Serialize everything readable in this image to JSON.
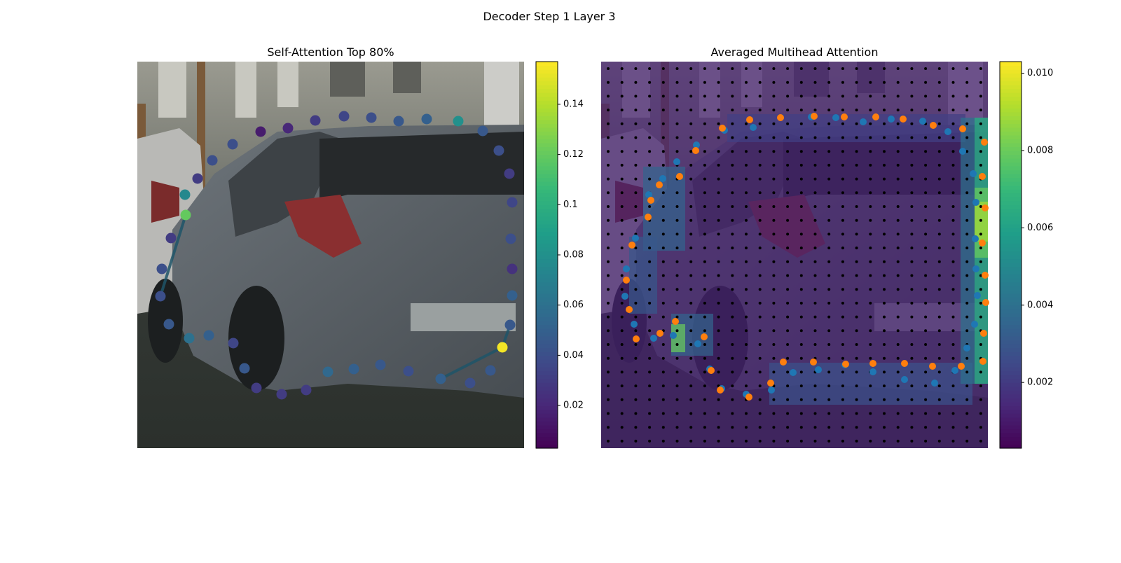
{
  "title": "Decoder Step 1 Layer 3",
  "chart_data": [
    {
      "type": "scatter",
      "title": "Self-Attention Top 80%",
      "xlim": [
        0,
        552
      ],
      "ylim": [
        552,
        0
      ],
      "clim": [
        0.003,
        0.157
      ],
      "cticks": [
        0.02,
        0.04,
        0.06,
        0.08,
        0.1,
        0.12,
        0.14
      ],
      "links": [
        [
          35,
          32
        ],
        [
          16,
          19
        ],
        [
          16,
          15
        ]
      ],
      "series": [
        {
          "x": [
            176,
            215,
            254,
            295,
            334,
            373,
            413,
            458,
            493,
            516,
            531,
            535,
            533,
            535,
            535,
            532,
            521,
            504,
            475,
            433,
            387,
            347,
            309,
            272,
            241,
            206,
            170,
            153,
            137,
            102,
            74,
            45,
            33,
            35,
            48,
            69,
            68,
            86,
            107,
            136
          ],
          "y": [
            100,
            95,
            84,
            78,
            80,
            85,
            82,
            85,
            99,
            127,
            160,
            201,
            253,
            296,
            334,
            376,
            408,
            441,
            459,
            453,
            442,
            433,
            439,
            443,
            469,
            475,
            466,
            438,
            402,
            391,
            395,
            375,
            335,
            296,
            252,
            219,
            190,
            167,
            141,
            118
          ],
          "values": [
            0.015,
            0.02,
            0.03,
            0.035,
            0.04,
            0.045,
            0.05,
            0.08,
            0.045,
            0.04,
            0.03,
            0.035,
            0.04,
            0.025,
            0.05,
            0.045,
            0.155,
            0.045,
            0.04,
            0.05,
            0.04,
            0.045,
            0.05,
            0.055,
            0.03,
            0.03,
            0.03,
            0.045,
            0.035,
            0.05,
            0.06,
            0.045,
            0.04,
            0.04,
            0.03,
            0.12,
            0.075,
            0.03,
            0.04,
            0.04
          ]
        }
      ]
    },
    {
      "type": "heatmap-scatter",
      "title": "Averaged Multihead Attention",
      "xlim": [
        0,
        552
      ],
      "ylim": [
        552,
        0
      ],
      "clim": [
        0.0003,
        0.0103
      ],
      "cticks": [
        0.002,
        0.004,
        0.006,
        0.008,
        {
          "value": 0.01,
          "label": "0.010"
        }
      ],
      "heatmap": [
        {
          "x": 0,
          "y": 0,
          "w": 552,
          "h": 552,
          "value": 0.0012
        },
        {
          "x": 180,
          "y": 75,
          "w": 340,
          "h": 40,
          "value": 0.0022
        },
        {
          "x": 60,
          "y": 150,
          "w": 60,
          "h": 120,
          "value": 0.0035
        },
        {
          "x": 40,
          "y": 250,
          "w": 40,
          "h": 110,
          "value": 0.003
        },
        {
          "x": 240,
          "y": 430,
          "w": 290,
          "h": 60,
          "value": 0.0028
        },
        {
          "x": 100,
          "y": 360,
          "w": 60,
          "h": 60,
          "value": 0.0035
        },
        {
          "x": 100,
          "y": 375,
          "w": 20,
          "h": 40,
          "value": 0.008
        },
        {
          "x": 513,
          "y": 80,
          "w": 39,
          "h": 380,
          "value": 0.004
        },
        {
          "x": 533,
          "y": 80,
          "w": 19,
          "h": 380,
          "value": 0.0065
        },
        {
          "x": 533,
          "y": 180,
          "w": 19,
          "h": 100,
          "value": 0.008
        },
        {
          "x": 533,
          "y": 200,
          "w": 19,
          "h": 57,
          "value": 0.009
        }
      ],
      "series": [
        {
          "color": "#1f77b4",
          "x": [
            217,
            300,
            335,
            374,
            414,
            459,
            495,
            516,
            531,
            535,
            534,
            535,
            537,
            533,
            522,
            505,
            476,
            433,
            388,
            348,
            310,
            274,
            243,
            207,
            172,
            155,
            138,
            103,
            75,
            47,
            34,
            36,
            49,
            68,
            88,
            108,
            136,
            176
          ],
          "y": [
            94,
            79,
            80,
            86,
            82,
            85,
            100,
            128,
            160,
            201,
            253,
            296,
            334,
            375,
            409,
            441,
            459,
            454,
            443,
            433,
            440,
            444,
            469,
            475,
            467,
            439,
            403,
            391,
            395,
            375,
            335,
            296,
            252,
            190,
            167,
            143,
            119,
            98
          ]
        },
        {
          "color": "#ff7f0e",
          "x": [
            173,
            212,
            256,
            304,
            347,
            392,
            431,
            474,
            516,
            547,
            544,
            548,
            544,
            548,
            549,
            546,
            545,
            514,
            473,
            433,
            388,
            349,
            303,
            260,
            242,
            211,
            170,
            157,
            147,
            106,
            84,
            50,
            40,
            36,
            44,
            67,
            71,
            83,
            112,
            135
          ],
          "y": [
            95,
            83,
            80,
            78,
            79,
            79,
            82,
            91,
            96,
            115,
            164,
            209,
            259,
            305,
            344,
            388,
            428,
            435,
            435,
            431,
            431,
            432,
            429,
            429,
            459,
            479,
            469,
            441,
            393,
            371,
            388,
            396,
            354,
            312,
            262,
            222,
            198,
            176,
            164,
            127
          ]
        }
      ]
    }
  ]
}
